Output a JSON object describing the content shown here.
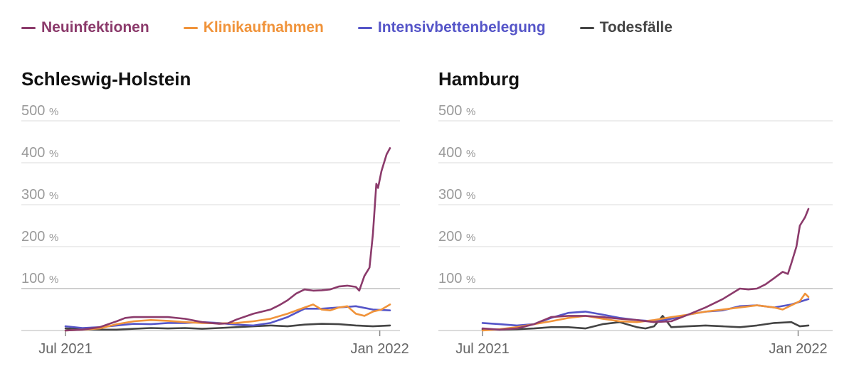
{
  "legend": [
    {
      "label": "Neuinfektionen",
      "color": "#8b3a6b"
    },
    {
      "label": "Klinikaufnahmen",
      "color": "#f0933a"
    },
    {
      "label": "Intensivbettenbelegung",
      "color": "#5555c8"
    },
    {
      "label": "Todesfälle",
      "color": "#444444"
    }
  ],
  "colors": {
    "grid": "#e2e2e2",
    "baseline": "#cfcfcf",
    "tick": "#9a9a9a"
  },
  "chart_data": [
    {
      "type": "line",
      "title": "Schleswig-Holstein",
      "ylim": [
        0,
        500
      ],
      "yticks": [
        100,
        200,
        300,
        400,
        500
      ],
      "ytick_unit": "%",
      "xlim": [
        0,
        190
      ],
      "x_unit": "days since 2021-07-01",
      "xticks": [
        {
          "x": 0,
          "label": "Jul 2021"
        },
        {
          "x": 184,
          "label": "Jan 2022"
        }
      ],
      "series": [
        {
          "name": "Neuinfektionen",
          "color": "#8b3a6b",
          "x": [
            0,
            10,
            20,
            30,
            35,
            40,
            50,
            60,
            70,
            80,
            90,
            95,
            100,
            110,
            120,
            125,
            130,
            135,
            140,
            145,
            150,
            155,
            160,
            165,
            170,
            172,
            175,
            178,
            180,
            182,
            183,
            185,
            188,
            190
          ],
          "y": [
            0,
            2,
            8,
            22,
            30,
            32,
            32,
            32,
            28,
            20,
            16,
            17,
            26,
            40,
            50,
            60,
            72,
            88,
            98,
            95,
            96,
            98,
            105,
            107,
            104,
            95,
            130,
            150,
            230,
            350,
            340,
            380,
            420,
            435
          ]
        },
        {
          "name": "Klinikaufnahmen",
          "color": "#f0933a",
          "x": [
            0,
            10,
            20,
            30,
            40,
            50,
            60,
            70,
            80,
            90,
            100,
            110,
            120,
            130,
            140,
            145,
            150,
            155,
            160,
            165,
            170,
            175,
            180,
            185,
            190
          ],
          "y": [
            0,
            2,
            5,
            15,
            22,
            25,
            23,
            20,
            18,
            17,
            18,
            22,
            28,
            40,
            55,
            62,
            50,
            48,
            55,
            58,
            40,
            35,
            45,
            50,
            62
          ]
        },
        {
          "name": "Intensivbettenbelegung",
          "color": "#5555c8",
          "x": [
            0,
            10,
            20,
            30,
            40,
            50,
            60,
            70,
            80,
            90,
            100,
            110,
            120,
            130,
            140,
            150,
            160,
            170,
            180,
            190
          ],
          "y": [
            10,
            6,
            8,
            12,
            16,
            15,
            18,
            18,
            20,
            18,
            14,
            12,
            18,
            32,
            52,
            52,
            55,
            58,
            50,
            48
          ]
        },
        {
          "name": "Todesfälle",
          "color": "#444444",
          "x": [
            0,
            10,
            20,
            30,
            40,
            50,
            60,
            70,
            80,
            90,
            100,
            110,
            120,
            130,
            140,
            150,
            160,
            170,
            180,
            190
          ],
          "y": [
            5,
            3,
            2,
            2,
            4,
            6,
            5,
            6,
            4,
            6,
            8,
            10,
            12,
            10,
            14,
            16,
            15,
            12,
            10,
            12
          ]
        }
      ]
    },
    {
      "type": "line",
      "title": "Hamburg",
      "ylim": [
        0,
        500
      ],
      "yticks": [
        100,
        200,
        300,
        400,
        500
      ],
      "ytick_unit": "%",
      "xlim": [
        0,
        190
      ],
      "x_unit": "days since 2021-07-01",
      "xticks": [
        {
          "x": 0,
          "label": "Jul 2021"
        },
        {
          "x": 184,
          "label": "Jan 2022"
        }
      ],
      "series": [
        {
          "name": "Neuinfektionen",
          "color": "#8b3a6b",
          "x": [
            0,
            10,
            20,
            30,
            40,
            50,
            60,
            70,
            80,
            90,
            100,
            110,
            120,
            130,
            140,
            150,
            155,
            160,
            165,
            170,
            175,
            178,
            180,
            183,
            185,
            188,
            190
          ],
          "y": [
            5,
            2,
            5,
            15,
            32,
            35,
            35,
            32,
            28,
            25,
            20,
            22,
            38,
            55,
            75,
            100,
            98,
            100,
            110,
            125,
            140,
            135,
            160,
            200,
            250,
            270,
            290
          ]
        },
        {
          "name": "Klinikaufnahmen",
          "color": "#f0933a",
          "x": [
            0,
            10,
            20,
            30,
            40,
            50,
            60,
            70,
            80,
            90,
            100,
            110,
            120,
            130,
            140,
            150,
            160,
            170,
            175,
            180,
            185,
            188,
            190
          ],
          "y": [
            0,
            3,
            8,
            15,
            22,
            30,
            35,
            28,
            22,
            20,
            25,
            32,
            38,
            45,
            50,
            55,
            60,
            55,
            50,
            60,
            70,
            88,
            80
          ]
        },
        {
          "name": "Intensivbettenbelegung",
          "color": "#5555c8",
          "x": [
            0,
            10,
            20,
            30,
            40,
            50,
            60,
            70,
            80,
            90,
            100,
            110,
            120,
            130,
            140,
            150,
            160,
            170,
            180,
            190
          ],
          "y": [
            18,
            15,
            12,
            15,
            30,
            42,
            45,
            38,
            30,
            25,
            22,
            28,
            38,
            45,
            48,
            58,
            60,
            55,
            62,
            75
          ]
        },
        {
          "name": "Todesfälle",
          "color": "#444444",
          "x": [
            0,
            10,
            20,
            30,
            40,
            50,
            60,
            65,
            70,
            80,
            90,
            95,
            100,
            105,
            110,
            120,
            130,
            140,
            150,
            160,
            170,
            180,
            185,
            190
          ],
          "y": [
            3,
            2,
            3,
            5,
            8,
            8,
            5,
            10,
            15,
            20,
            8,
            5,
            10,
            35,
            8,
            10,
            12,
            10,
            8,
            12,
            18,
            20,
            10,
            12
          ]
        }
      ]
    }
  ]
}
